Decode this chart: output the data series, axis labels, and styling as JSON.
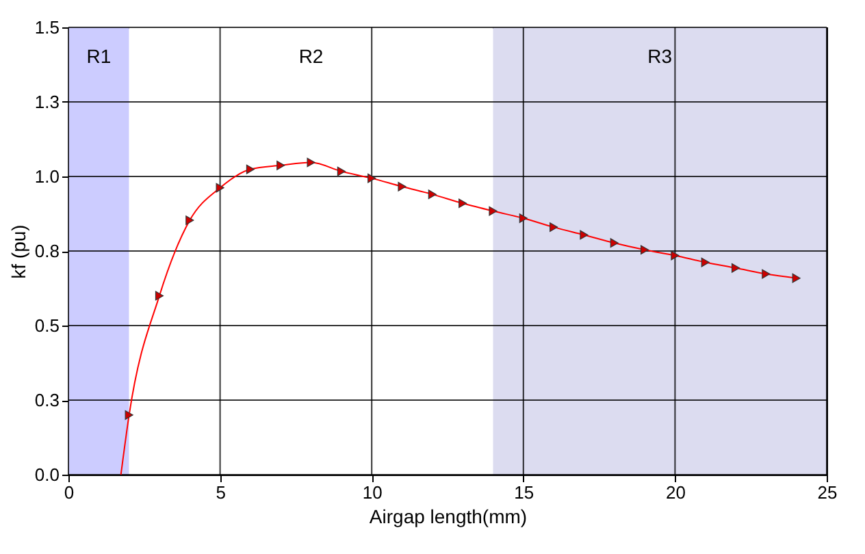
{
  "chart_data": {
    "type": "line",
    "xlabel": "Airgap length(mm)",
    "ylabel": "kf  (pu)",
    "series": [
      {
        "color": "#ff0000",
        "marker": "none",
        "x": [
          1.73,
          2,
          3,
          4,
          5,
          6,
          7,
          8,
          9,
          10,
          11,
          12,
          13,
          14,
          15,
          16,
          17,
          18,
          19,
          20,
          21,
          22,
          23,
          24
        ],
        "values": [
          0,
          0.2,
          0.6,
          0.853,
          0.962,
          1.024,
          1.037,
          1.047,
          1.017,
          0.994,
          0.966,
          0.94,
          0.91,
          0.884,
          0.86,
          0.83,
          0.804,
          0.777,
          0.754,
          0.735,
          0.712,
          0.693,
          0.673,
          0.659
        ]
      },
      {
        "type": "scatter",
        "color": "#cc0000",
        "marker": "triangle",
        "x": [
          2,
          3,
          4,
          5,
          6,
          7,
          8,
          9,
          10,
          11,
          12,
          13,
          14,
          15,
          16,
          17,
          18,
          19,
          20,
          21,
          22,
          23,
          24
        ],
        "values": [
          0.2,
          0.6,
          0.853,
          0.962,
          1.024,
          1.037,
          1.047,
          1.017,
          0.994,
          0.966,
          0.94,
          0.91,
          0.884,
          0.86,
          0.83,
          0.804,
          0.777,
          0.754,
          0.735,
          0.712,
          0.693,
          0.673,
          0.659
        ]
      }
    ],
    "xlim": [
      0,
      25
    ],
    "xticks": [
      0,
      5,
      10,
      15,
      20,
      25
    ],
    "ylim": [
      0,
      1.5
    ],
    "yticks": [
      {
        "value": 0,
        "label": "0.0"
      },
      {
        "value": 0.25,
        "label": "0.3"
      },
      {
        "value": 0.5,
        "label": "0.5"
      },
      {
        "value": 0.75,
        "label": "0.8"
      },
      {
        "value": 1,
        "label": "1.0"
      },
      {
        "value": 1.25,
        "label": "1.3"
      },
      {
        "value": 1.5,
        "label": "1.5"
      }
    ],
    "grid": true,
    "bands": [
      {
        "axis": "x",
        "from": 0,
        "to": 2,
        "label": "R1",
        "color": "#ccccff"
      },
      {
        "axis": "x",
        "from": 2,
        "to": 14,
        "label": "R2",
        "color": "#ffffff"
      },
      {
        "axis": "x",
        "from": 14,
        "to": 25,
        "label": "R3",
        "color": "#dcdcf0"
      }
    ]
  }
}
